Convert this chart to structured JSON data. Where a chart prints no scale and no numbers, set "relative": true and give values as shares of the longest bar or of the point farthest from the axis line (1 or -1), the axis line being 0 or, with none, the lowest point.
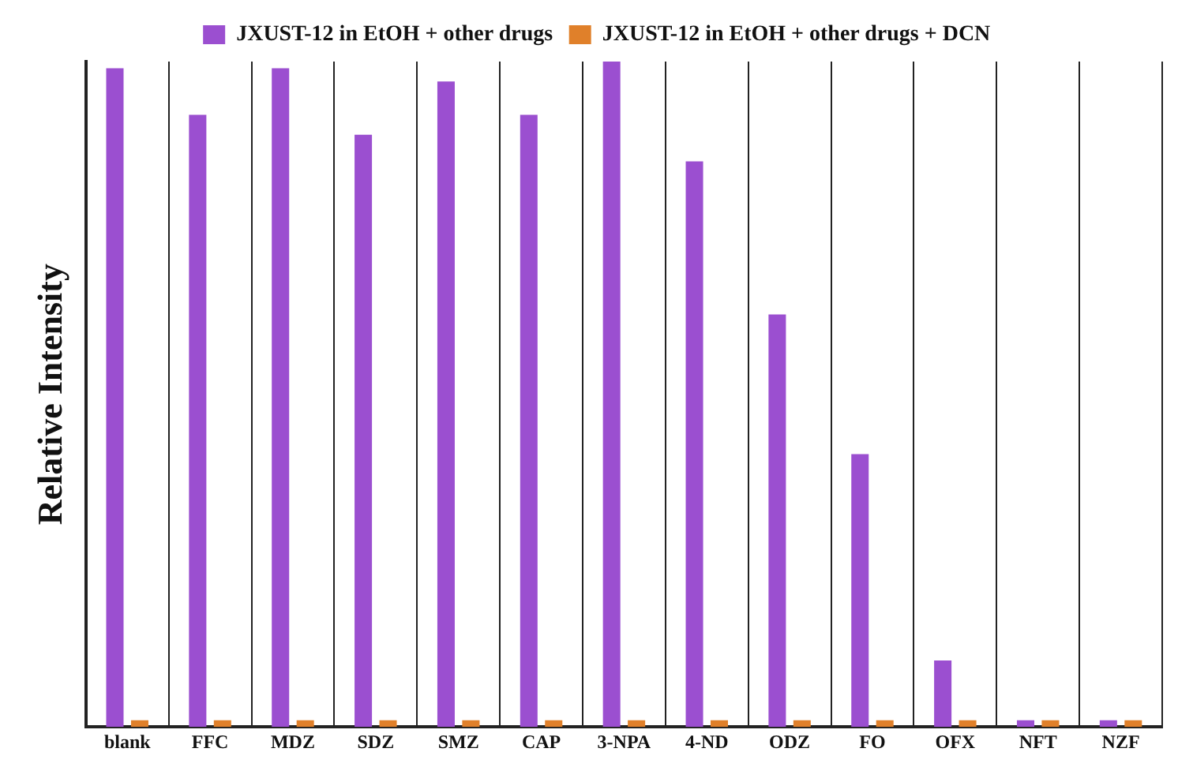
{
  "chart_data": {
    "type": "bar",
    "relative": true,
    "ylabel": "Relative Intensity",
    "categories": [
      "blank",
      "FFC",
      "MDZ",
      "SDZ",
      "SMZ",
      "CAP",
      "3-NPA",
      "4-ND",
      "ODZ",
      "FO",
      "OFX",
      "NFT",
      "NZF"
    ],
    "series": [
      {
        "name": "JXUST-12 in EtOH + other drugs",
        "color": "#9b4fd0",
        "values": [
          0.99,
          0.92,
          0.99,
          0.89,
          0.97,
          0.92,
          1,
          0.85,
          0.62,
          0.41,
          0.1,
          0.01,
          0.01
        ]
      },
      {
        "name": "JXUST-12 in EtOH + other drugs + DCN",
        "color": "#e0802a",
        "values": [
          0.01,
          0.01,
          0.01,
          0.01,
          0.01,
          0.01,
          0.01,
          0.01,
          0.01,
          0.01,
          0.01,
          0.01,
          0.01
        ]
      }
    ],
    "legend": "top",
    "grid": "x"
  }
}
